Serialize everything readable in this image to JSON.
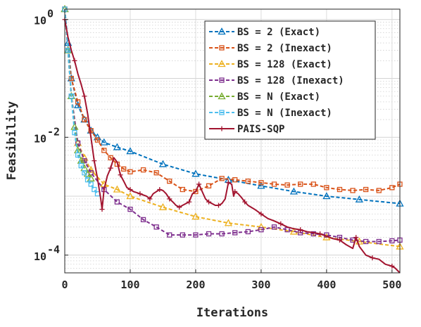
{
  "chart_data": {
    "type": "line",
    "xlabel": "Iterations",
    "ylabel": "Feasibility",
    "xlim": [
      0,
      512
    ],
    "ylim": [
      5e-05,
      1.5
    ],
    "yscale": "log",
    "grid": true,
    "minor_grid": true,
    "legend_position": "top-right",
    "x_ticks": [
      0,
      100,
      200,
      300,
      400,
      500
    ],
    "x_tick_labels": [
      "0",
      "100",
      "200",
      "300",
      "400",
      "500"
    ],
    "y_ticks": [
      1,
      0.01,
      0.0001
    ],
    "y_tick_labels": [
      {
        "base": "10",
        "exp": "0"
      },
      {
        "base": "10",
        "exp": "-2"
      },
      {
        "base": "10",
        "exp": "-4"
      }
    ],
    "series": [
      {
        "name": "BS = 2 (Exact)",
        "color": "#0072BD",
        "marker": "triangle",
        "dash": "dashed",
        "x": [
          0,
          5,
          10,
          20,
          30,
          40,
          50,
          60,
          80,
          100,
          150,
          200,
          250,
          300,
          350,
          400,
          450,
          512
        ],
        "y": [
          1.5,
          0.4,
          0.1,
          0.035,
          0.02,
          0.013,
          0.01,
          0.0082,
          0.0068,
          0.0058,
          0.0035,
          0.0024,
          0.0019,
          0.0015,
          0.0012,
          0.001,
          0.00088,
          0.00075
        ]
      },
      {
        "name": "BS = 2 (Inexact)",
        "color": "#D95319",
        "marker": "square",
        "dash": "dashed",
        "x": [
          0,
          5,
          10,
          20,
          30,
          40,
          50,
          60,
          70,
          80,
          90,
          100,
          120,
          140,
          160,
          180,
          200,
          220,
          240,
          260,
          280,
          300,
          320,
          340,
          360,
          380,
          400,
          420,
          440,
          460,
          480,
          500,
          512
        ],
        "y": [
          1.5,
          0.3,
          0.1,
          0.04,
          0.02,
          0.013,
          0.009,
          0.006,
          0.0045,
          0.0035,
          0.0029,
          0.0026,
          0.0028,
          0.0025,
          0.0018,
          0.0013,
          0.0012,
          0.0015,
          0.002,
          0.0019,
          0.0018,
          0.0017,
          0.0016,
          0.00155,
          0.0016,
          0.0016,
          0.0014,
          0.0013,
          0.00125,
          0.0013,
          0.00125,
          0.0014,
          0.0016
        ]
      },
      {
        "name": "BS = 128 (Exact)",
        "color": "#EDB120",
        "marker": "triangle",
        "dash": "dashed",
        "x": [
          0,
          5,
          10,
          20,
          30,
          40,
          60,
          80,
          100,
          150,
          200,
          250,
          300,
          350,
          400,
          450,
          512
        ],
        "y": [
          1.5,
          0.3,
          0.05,
          0.008,
          0.0045,
          0.0028,
          0.0016,
          0.0013,
          0.001,
          0.00065,
          0.00045,
          0.00035,
          0.0003,
          0.00025,
          0.0002,
          0.00017,
          0.00014
        ]
      },
      {
        "name": "BS = 128 (Inexact)",
        "color": "#7E2F8E",
        "marker": "square",
        "dash": "dashed",
        "x": [
          0,
          5,
          10,
          20,
          30,
          40,
          60,
          80,
          100,
          120,
          140,
          160,
          180,
          200,
          220,
          240,
          260,
          280,
          300,
          320,
          340,
          360,
          380,
          400,
          420,
          440,
          460,
          480,
          500,
          512
        ],
        "y": [
          1.5,
          0.3,
          0.05,
          0.008,
          0.004,
          0.0025,
          0.0013,
          0.0008,
          0.0006,
          0.0004,
          0.0003,
          0.00022,
          0.00022,
          0.00022,
          0.00023,
          0.00023,
          0.00024,
          0.00025,
          0.00027,
          0.0003,
          0.00027,
          0.00024,
          0.00023,
          0.00022,
          0.0002,
          0.00018,
          0.00017,
          0.00017,
          0.000175,
          0.00018
        ]
      },
      {
        "name": "BS = N (Exact)",
        "color": "#77AC30",
        "marker": "triangle",
        "dash": "dashed",
        "x": [
          0,
          5,
          10,
          15,
          20,
          25,
          30,
          35,
          40
        ],
        "y": [
          1.5,
          0.3,
          0.05,
          0.015,
          0.006,
          0.004,
          0.003,
          0.0024,
          0.002
        ]
      },
      {
        "name": "BS = N (Inexact)",
        "color": "#4DBEEE",
        "marker": "square",
        "dash": "dashed",
        "x": [
          0,
          5,
          10,
          15,
          20,
          25,
          30,
          35,
          40,
          45,
          50
        ],
        "y": [
          1.5,
          0.3,
          0.05,
          0.012,
          0.005,
          0.0033,
          0.0025,
          0.0019,
          0.0016,
          0.0013,
          0.0011
        ]
      },
      {
        "name": "PAIS-SQP",
        "color": "#A2142F",
        "marker": "plus",
        "dash": "solid",
        "x": [
          0,
          5,
          10,
          15,
          20,
          25,
          30,
          35,
          40,
          45,
          50,
          55,
          57,
          60,
          65,
          70,
          75,
          80,
          85,
          90,
          95,
          100,
          105,
          110,
          115,
          120,
          125,
          130,
          135,
          140,
          145,
          150,
          155,
          160,
          165,
          170,
          175,
          180,
          185,
          190,
          195,
          200,
          205,
          210,
          215,
          220,
          225,
          230,
          235,
          240,
          245,
          250,
          255,
          258,
          260,
          265,
          270,
          275,
          280,
          290,
          300,
          310,
          320,
          330,
          340,
          350,
          360,
          370,
          380,
          390,
          400,
          410,
          420,
          430,
          440,
          445,
          450,
          460,
          470,
          480,
          490,
          500,
          505,
          512
        ],
        "y": [
          1.0,
          0.5,
          0.3,
          0.2,
          0.12,
          0.08,
          0.05,
          0.025,
          0.01,
          0.004,
          0.002,
          0.0009,
          0.0006,
          0.0013,
          0.0022,
          0.003,
          0.0045,
          0.0038,
          0.0023,
          0.0018,
          0.0014,
          0.0013,
          0.0012,
          0.00115,
          0.0011,
          0.00105,
          0.001,
          0.0009,
          0.0011,
          0.0012,
          0.0013,
          0.00125,
          0.0011,
          0.0009,
          0.0008,
          0.0007,
          0.00065,
          0.0007,
          0.00075,
          0.0008,
          0.0011,
          0.0012,
          0.0016,
          0.0012,
          0.0009,
          0.0008,
          0.00075,
          0.0007,
          0.0007,
          0.00075,
          0.0009,
          0.0017,
          0.0016,
          0.001,
          0.0012,
          0.0011,
          0.00095,
          0.0008,
          0.0007,
          0.0006,
          0.0005,
          0.00042,
          0.00038,
          0.00034,
          0.0003,
          0.00028,
          0.00027,
          0.00025,
          0.00024,
          0.00023,
          0.00021,
          0.00019,
          0.00018,
          0.00015,
          0.00013,
          0.0002,
          0.00014,
          0.0001,
          9e-05,
          8.5e-05,
          7e-05,
          6.5e-05,
          6e-05,
          5e-05
        ]
      }
    ]
  }
}
